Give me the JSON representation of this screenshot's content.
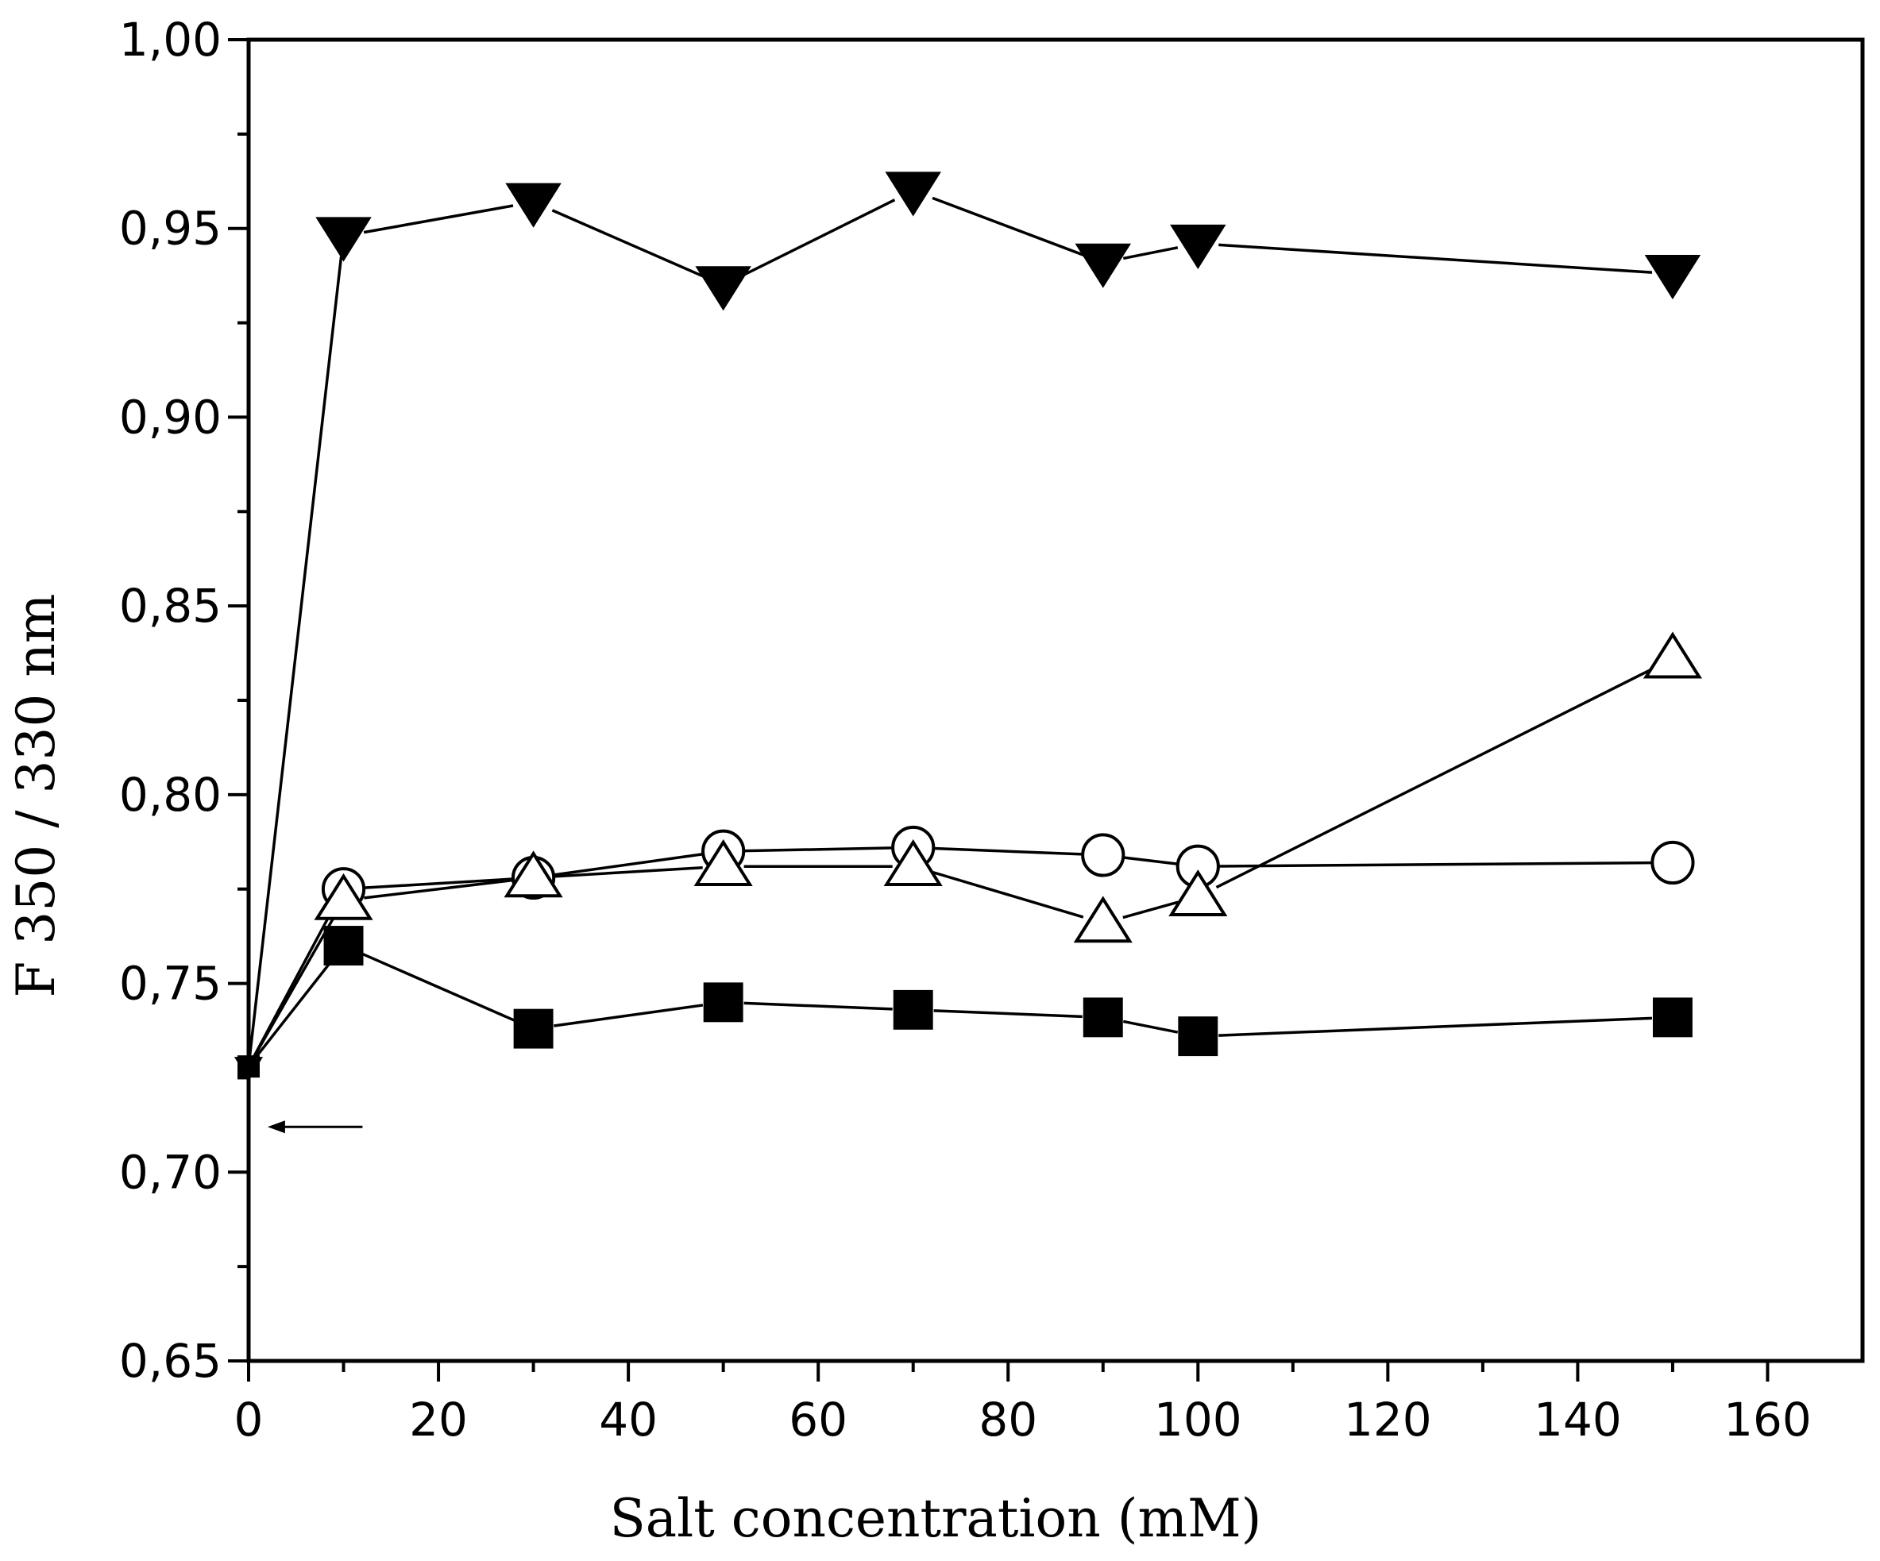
{
  "chart_data": {
    "type": "line",
    "title": "",
    "xlabel": "Salt concentration (mM)",
    "ylabel": "F 350 / 330 nm",
    "xlim": [
      0,
      170
    ],
    "ylim": [
      0.65,
      1.0
    ],
    "x_major_ticks": [
      0,
      20,
      40,
      60,
      80,
      100,
      120,
      140,
      160
    ],
    "x_tick_labels": [
      "0",
      "20",
      "40",
      "60",
      "80",
      "100",
      "120",
      "140",
      "160"
    ],
    "x_minor_ticks": [
      10,
      30,
      50,
      70,
      90,
      110,
      130,
      150
    ],
    "y_major_ticks": [
      0.65,
      0.7,
      0.75,
      0.8,
      0.85,
      0.9,
      0.95,
      1.0
    ],
    "y_tick_labels": [
      "0,65",
      "0,70",
      "0,75",
      "0,80",
      "0,85",
      "0,90",
      "0,95",
      "1,00"
    ],
    "y_minor_ticks": [
      0.675,
      0.725,
      0.775,
      0.825,
      0.875,
      0.925,
      0.975
    ],
    "grid": false,
    "annotation": {
      "type": "arrow",
      "from": [
        12,
        0.712
      ],
      "to": [
        2,
        0.712
      ]
    },
    "series": [
      {
        "name": "filled-down-triangle",
        "marker": "triangle-down-filled",
        "x": [
          0,
          10,
          30,
          50,
          70,
          90,
          100,
          150
        ],
        "y": [
          0.728,
          0.948,
          0.957,
          0.935,
          0.96,
          0.941,
          0.946,
          0.938
        ]
      },
      {
        "name": "open-circle",
        "marker": "circle-open",
        "x": [
          0,
          10,
          30,
          50,
          70,
          90,
          100,
          150
        ],
        "y": [
          0.728,
          0.775,
          0.778,
          0.785,
          0.786,
          0.784,
          0.781,
          0.782
        ]
      },
      {
        "name": "open-triangle",
        "marker": "triangle-up-open",
        "x": [
          0,
          10,
          30,
          50,
          70,
          90,
          100,
          150
        ],
        "y": [
          0.728,
          0.772,
          0.778,
          0.781,
          0.781,
          0.766,
          0.773,
          0.836
        ]
      },
      {
        "name": "filled-square",
        "marker": "square-filled",
        "x": [
          0,
          10,
          30,
          50,
          70,
          90,
          100,
          150
        ],
        "y": [
          0.728,
          0.76,
          0.738,
          0.745,
          0.743,
          0.741,
          0.736,
          0.741
        ]
      }
    ]
  }
}
